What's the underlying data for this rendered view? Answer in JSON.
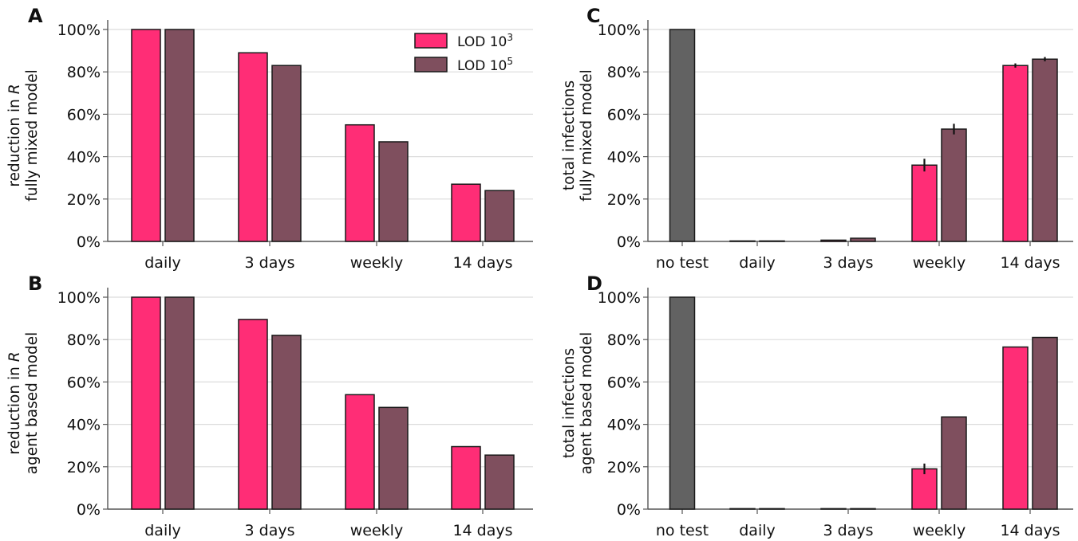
{
  "chart_data": [
    {
      "panel": "A",
      "type": "bar",
      "ylabel_lines": [
        "reduction in R",
        "fully mixed model"
      ],
      "ylabel_italic": "R",
      "categories": [
        "daily",
        "3 days",
        "weekly",
        "14 days"
      ],
      "series": [
        {
          "name": "LOD 10^3",
          "values": [
            100,
            89,
            55,
            27
          ]
        },
        {
          "name": "LOD 10^5",
          "values": [
            100,
            83,
            47,
            24
          ]
        }
      ],
      "ylim": [
        0,
        100
      ],
      "yticks": [
        "0%",
        "20%",
        "40%",
        "60%",
        "80%",
        "100%"
      ],
      "grid": "horizontal",
      "legend": "top-right"
    },
    {
      "panel": "B",
      "type": "bar",
      "ylabel_lines": [
        "reduction in R",
        "agent based model"
      ],
      "ylabel_italic": "R",
      "categories": [
        "daily",
        "3 days",
        "weekly",
        "14 days"
      ],
      "series": [
        {
          "name": "LOD 10^3",
          "values": [
            100,
            89.5,
            54,
            29.5
          ]
        },
        {
          "name": "LOD 10^5",
          "values": [
            100,
            82,
            48,
            25.5
          ]
        }
      ],
      "ylim": [
        0,
        100
      ],
      "yticks": [
        "0%",
        "20%",
        "40%",
        "60%",
        "80%",
        "100%"
      ],
      "grid": "horizontal"
    },
    {
      "panel": "C",
      "type": "bar",
      "ylabel_lines": [
        "total infections",
        "fully mixed model"
      ],
      "categories": [
        "no test",
        "daily",
        "3 days",
        "weekly",
        "14 days"
      ],
      "baseline": {
        "category": "no test",
        "value": 100
      },
      "series": [
        {
          "name": "LOD 10^3",
          "values": [
            null,
            0.1,
            0.6,
            36,
            83
          ],
          "errors": [
            null,
            0,
            0,
            3,
            1
          ]
        },
        {
          "name": "LOD 10^5",
          "values": [
            null,
            0.1,
            1.5,
            53,
            86
          ],
          "errors": [
            null,
            0,
            0,
            2.5,
            1
          ]
        }
      ],
      "ylim": [
        0,
        100
      ],
      "yticks": [
        "0%",
        "20%",
        "40%",
        "60%",
        "80%",
        "100%"
      ],
      "grid": "horizontal"
    },
    {
      "panel": "D",
      "type": "bar",
      "ylabel_lines": [
        "total infections",
        "agent based model"
      ],
      "categories": [
        "no test",
        "daily",
        "3 days",
        "weekly",
        "14 days"
      ],
      "baseline": {
        "category": "no test",
        "value": 100
      },
      "series": [
        {
          "name": "LOD 10^3",
          "values": [
            null,
            0,
            0,
            19,
            76.5
          ],
          "errors": [
            null,
            0,
            0,
            2.5,
            0
          ]
        },
        {
          "name": "LOD 10^5",
          "values": [
            null,
            0,
            0,
            43.5,
            81
          ],
          "errors": [
            null,
            0,
            0,
            0,
            0
          ]
        }
      ],
      "ylim": [
        0,
        100
      ],
      "yticks": [
        "0%",
        "20%",
        "40%",
        "60%",
        "80%",
        "100%"
      ],
      "grid": "horizontal"
    }
  ],
  "legend": {
    "items": [
      {
        "base": "LOD 10",
        "exp": "3",
        "color": "#ff2d76"
      },
      {
        "base": "LOD 10",
        "exp": "5",
        "color": "#7f4f5e"
      }
    ]
  },
  "colors": {
    "lod3": "#ff2d76",
    "lod5": "#7f4f5e",
    "baseline": "#626262",
    "edge": "#1a1a1a",
    "grid": "#dcdcdc",
    "axis": "#555555"
  }
}
